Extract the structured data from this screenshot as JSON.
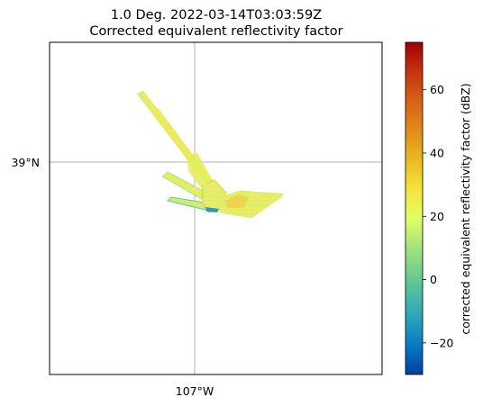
{
  "figure": {
    "title_line1": "1.0 Deg. 2022-03-14T03:03:59Z",
    "title_line2": "Corrected equivalent reflectivity factor"
  },
  "map": {
    "gridline_color": "#b0b0b0",
    "lat_label": "39°N",
    "lon_label": "107°W",
    "frame_color": "#000000"
  },
  "colorbar": {
    "label": "corrected equivalent reflectivity factor (dBZ)",
    "vmin": -30,
    "vmax": 75,
    "ticks": [
      "60",
      "40",
      "20",
      "0",
      "−20"
    ],
    "tick_values": [
      60,
      40,
      20,
      0,
      -20
    ],
    "colormap_name": "HomeyerRainbow",
    "colormap_stops": [
      "#00429d",
      "#0a7ac2",
      "#2fa8b8",
      "#5cc398",
      "#94dd80",
      "#dfff64",
      "#f5e43c",
      "#e9b821",
      "#e08a19",
      "#d65e16",
      "#c32e10",
      "#a00000"
    ]
  },
  "echo": {
    "dominant_color": "#e8f060",
    "edge_colors": [
      "#7fd37f",
      "#2f96b7",
      "#f0c030"
    ]
  }
}
